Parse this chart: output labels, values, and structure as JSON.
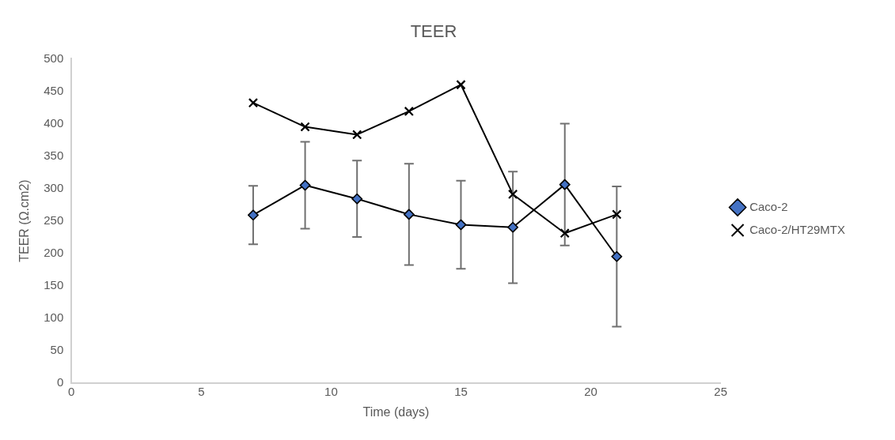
{
  "chart_data": {
    "type": "line",
    "title": "TEER",
    "xlabel": "Time (days)",
    "ylabel": "TEER (Ω.cm2)",
    "x": [
      7,
      9,
      11,
      13,
      15,
      17,
      19,
      21
    ],
    "xlim": [
      0,
      25
    ],
    "xticks": [
      0,
      5,
      10,
      15,
      20,
      25
    ],
    "ylim": [
      0,
      500
    ],
    "yticks": [
      0,
      50,
      100,
      150,
      200,
      250,
      300,
      350,
      400,
      450,
      500
    ],
    "grid": false,
    "legend": "right",
    "series": [
      {
        "name": "Caco-2",
        "color": "#4472c4",
        "marker": "diamond",
        "values": [
          259,
          305,
          284,
          260,
          244,
          240,
          306,
          195
        ],
        "errors": [
          45,
          67,
          59,
          78,
          68,
          86,
          94,
          108
        ]
      },
      {
        "name": "Caco-2/HT29MTX",
        "color": "#000000",
        "marker": "cross",
        "values": [
          432,
          395,
          383,
          419,
          460,
          291,
          231,
          260
        ]
      }
    ]
  }
}
